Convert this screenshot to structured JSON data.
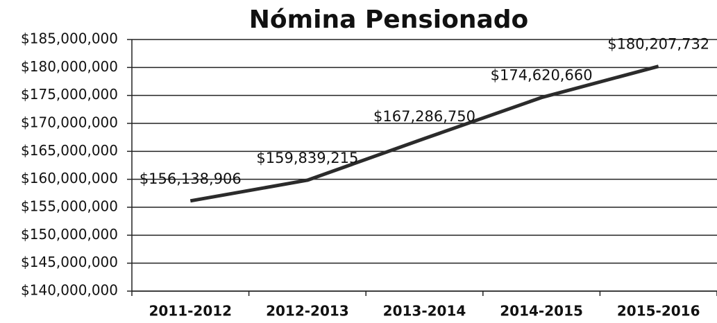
{
  "chart_data": {
    "type": "line",
    "title": "Nómina Pensionado",
    "categories": [
      "2011-2012",
      "2012-2013",
      "2013-2014",
      "2014-2015",
      "2015-2016"
    ],
    "values": [
      156138906,
      159839215,
      167286750,
      174620660,
      180207732
    ],
    "value_labels": [
      "$156,138,906",
      "$159,839,215",
      "$167,286,750",
      "$174,620,660",
      "$180,207,732"
    ],
    "color": "#2b2b2b",
    "ylim": [
      140000000,
      185000000
    ],
    "yticks": [
      {
        "value": 140000000,
        "label": "$140,000,000"
      },
      {
        "value": 145000000,
        "label": "$145,000,000"
      },
      {
        "value": 150000000,
        "label": "$150,000,000"
      },
      {
        "value": 155000000,
        "label": "$155,000,000"
      },
      {
        "value": 160000000,
        "label": "$160,000,000"
      },
      {
        "value": 165000000,
        "label": "$165,000,000"
      },
      {
        "value": 170000000,
        "label": "$170,000,000"
      },
      {
        "value": 175000000,
        "label": "$175,000,000"
      },
      {
        "value": 180000000,
        "label": "$180,000,000"
      },
      {
        "value": 185000000,
        "label": "$185,000,000"
      }
    ],
    "grid": true
  }
}
